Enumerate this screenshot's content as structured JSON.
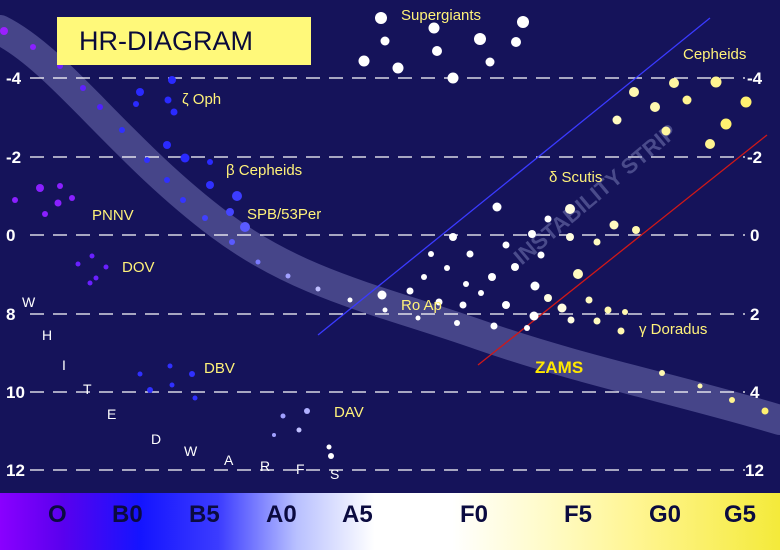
{
  "title": "HR-DIAGRAM",
  "left_axis": [
    "-4",
    "-2",
    "0",
    "8",
    "10",
    "12"
  ],
  "right_axis": [
    "-4",
    "-2",
    "0",
    "2",
    "4",
    "12"
  ],
  "spectral_classes": [
    "O",
    "B0",
    "B5",
    "A0",
    "A5",
    "F0",
    "F5",
    "G0",
    "G5"
  ],
  "labels": {
    "supergiants": "Supergiants",
    "cepheids": "Cepheids",
    "zeta_oph": "ζ Oph",
    "beta_cepheids": "β Cepheids",
    "spb": "SPB/53Per",
    "pnnv": "PNNV",
    "dov": "DOV",
    "delta_scutis": "δ Scutis",
    "ro_ap": "Ro Ap",
    "gamma_doradus": "γ Doradus",
    "zams": "ZAMS",
    "dbv": "DBV",
    "dav": "DAV",
    "instability_strip": "INSTABILITY STRIP"
  },
  "white_dwarfs_letters": [
    "W",
    "H",
    "I",
    "T",
    "E",
    "D",
    "W",
    "A",
    "R",
    "F",
    "S"
  ],
  "colors": {
    "background": "#15135a",
    "label": "#fff27a",
    "title_box": "#fff97a",
    "strip_blue_line": "#3a3aff",
    "strip_red_line": "#d01818",
    "main_sequence": "#7a7ab8"
  }
}
